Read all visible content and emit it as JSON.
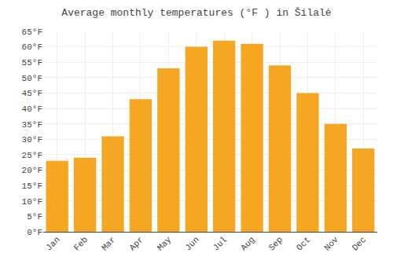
{
  "chart_data": {
    "type": "bar",
    "title": "Average monthly temperatures (°F ) in Šilalė",
    "categories": [
      "Jan",
      "Feb",
      "Mar",
      "Apr",
      "May",
      "Jun",
      "Jul",
      "Aug",
      "Sep",
      "Oct",
      "Nov",
      "Dec"
    ],
    "values": [
      23,
      24,
      31,
      43,
      53,
      60,
      62,
      61,
      54,
      45,
      35,
      27
    ],
    "color": "#F5A623",
    "ylim": [
      0,
      65
    ],
    "yticks": [
      {
        "value": 0,
        "label": "0°F"
      },
      {
        "value": 5,
        "label": "5°F"
      },
      {
        "value": 10,
        "label": "10°F"
      },
      {
        "value": 15,
        "label": "15°F"
      },
      {
        "value": 20,
        "label": "20°F"
      },
      {
        "value": 25,
        "label": "25°F"
      },
      {
        "value": 30,
        "label": "30°F"
      },
      {
        "value": 35,
        "label": "35°F"
      },
      {
        "value": 40,
        "label": "40°F"
      },
      {
        "value": 45,
        "label": "45°F"
      },
      {
        "value": 50,
        "label": "50°F"
      },
      {
        "value": 55,
        "label": "55°F"
      },
      {
        "value": 60,
        "label": "60°F"
      },
      {
        "value": 65,
        "label": "65°F"
      }
    ],
    "grid": true
  }
}
